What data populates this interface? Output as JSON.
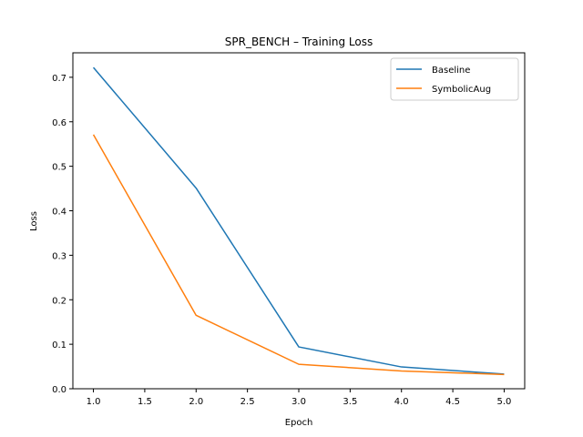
{
  "chart_data": {
    "type": "line",
    "title": "SPR_BENCH – Training Loss",
    "xlabel": "Epoch",
    "ylabel": "Loss",
    "x": [
      1,
      2,
      3,
      4,
      5
    ],
    "xlim": [
      0.8,
      5.2
    ],
    "ylim": [
      0.0,
      0.755
    ],
    "xticks": [
      "1.0",
      "1.5",
      "2.0",
      "2.5",
      "3.0",
      "3.5",
      "4.0",
      "4.5",
      "5.0"
    ],
    "yticks": [
      "0.0",
      "0.1",
      "0.2",
      "0.3",
      "0.4",
      "0.5",
      "0.6",
      "0.7"
    ],
    "grid": false,
    "legend_position": "top-right",
    "series": [
      {
        "name": "Baseline",
        "color": "#1f77b4",
        "values": [
          0.722,
          0.451,
          0.094,
          0.049,
          0.033
        ]
      },
      {
        "name": "SymbolicAug",
        "color": "#ff7f0e",
        "values": [
          0.571,
          0.165,
          0.055,
          0.04,
          0.032
        ]
      }
    ]
  }
}
